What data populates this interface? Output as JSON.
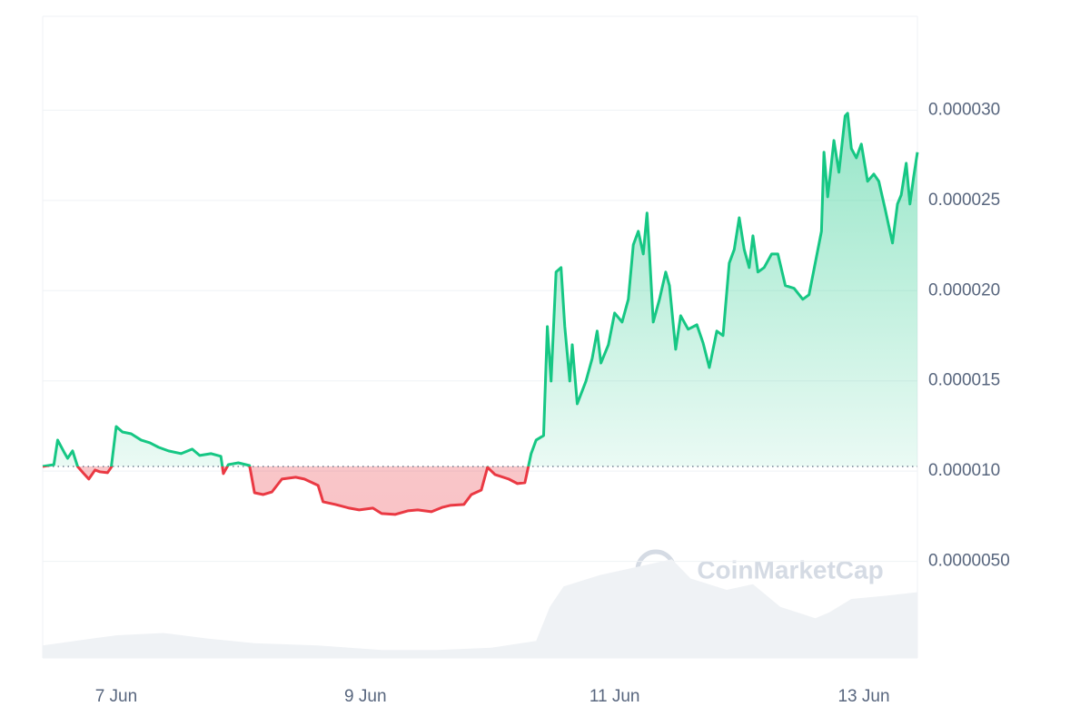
{
  "chart_data": {
    "type": "baseline-line",
    "watermark": "CoinMarketCap",
    "xlim": [
      6.41,
      13.43
    ],
    "xticks": [
      {
        "value": 7,
        "label": "7 Jun"
      },
      {
        "value": 9,
        "label": "9 Jun"
      },
      {
        "value": 11,
        "label": "11 Jun"
      },
      {
        "value": 13,
        "label": "13 Jun"
      }
    ],
    "ylim": [
      0,
      3.52e-05
    ],
    "yticks": [
      {
        "value": 5e-06,
        "label": "0.0000050"
      },
      {
        "value": 1e-05,
        "label": "0.000010"
      },
      {
        "value": 1.5e-05,
        "label": "0.000015"
      },
      {
        "value": 2e-05,
        "label": "0.000020"
      },
      {
        "value": 2.5e-05,
        "label": "0.000025"
      },
      {
        "value": 3e-05,
        "label": "0.000030"
      }
    ],
    "grid": true,
    "baseline": 1.026e-05,
    "up_color": "#16c784",
    "down_color": "#ea3943",
    "x": [
      6.41,
      6.5,
      6.53,
      6.58,
      6.61,
      6.65,
      6.69,
      6.74,
      6.78,
      6.83,
      6.87,
      6.93,
      6.96,
      7.0,
      7.05,
      7.12,
      7.2,
      7.27,
      7.34,
      7.42,
      7.52,
      7.61,
      7.67,
      7.76,
      7.84,
      7.86,
      7.9,
      7.98,
      8.07,
      8.11,
      8.18,
      8.25,
      8.33,
      8.44,
      8.51,
      8.62,
      8.66,
      8.76,
      8.87,
      8.95,
      9.06,
      9.13,
      9.24,
      9.34,
      9.42,
      9.53,
      9.62,
      9.68,
      9.79,
      9.85,
      9.93,
      9.98,
      10.04,
      10.15,
      10.22,
      10.28,
      10.33,
      10.37,
      10.43,
      10.46,
      10.49,
      10.53,
      10.57,
      10.6,
      10.64,
      10.66,
      10.7,
      10.77,
      10.82,
      10.86,
      10.89,
      10.95,
      11.0,
      11.06,
      11.11,
      11.15,
      11.19,
      11.23,
      11.26,
      11.28,
      11.31,
      11.36,
      11.41,
      11.44,
      11.49,
      11.53,
      11.59,
      11.66,
      11.71,
      11.76,
      11.82,
      11.87,
      11.92,
      11.96,
      12.0,
      12.04,
      12.08,
      12.11,
      12.15,
      12.2,
      12.26,
      12.31,
      12.37,
      12.44,
      12.51,
      12.56,
      12.61,
      12.66,
      12.68,
      12.71,
      12.76,
      12.8,
      12.85,
      12.87,
      12.9,
      12.94,
      12.98,
      13.03,
      13.08,
      13.12,
      13.17,
      13.23,
      13.27,
      13.3,
      13.34,
      13.37,
      13.4,
      13.43
    ],
    "values": [
      1.026e-05,
      1.036e-05,
      1.172e-05,
      1.107e-05,
      1.071e-05,
      1.112e-05,
      1.026e-05,
      9.86e-06,
      9.56e-06,
      1.006e-05,
      9.96e-06,
      9.91e-06,
      1.021e-05,
      1.247e-05,
      1.217e-05,
      1.207e-05,
      1.172e-05,
      1.157e-05,
      1.132e-05,
      1.112e-05,
      1.097e-05,
      1.122e-05,
      1.087e-05,
      1.097e-05,
      1.082e-05,
      9.86e-06,
      1.036e-05,
      1.046e-05,
      1.031e-05,
      8.8e-06,
      8.7e-06,
      8.85e-06,
      9.56e-06,
      9.66e-06,
      9.56e-06,
      9.21e-06,
      8.3e-06,
      8.15e-06,
      7.95e-06,
      7.85e-06,
      7.95e-06,
      7.65e-06,
      7.6e-06,
      7.8e-06,
      7.85e-06,
      7.75e-06,
      8e-06,
      8.1e-06,
      8.15e-06,
      8.7e-06,
      8.95e-06,
      1.021e-05,
      9.81e-06,
      9.56e-06,
      9.31e-06,
      9.36e-06,
      1.097e-05,
      1.172e-05,
      1.197e-05,
      1.801e-05,
      1.499e-05,
      2.103e-05,
      2.128e-05,
      1.801e-05,
      1.499e-05,
      1.7e-05,
      1.373e-05,
      1.499e-05,
      1.625e-05,
      1.776e-05,
      1.599e-05,
      1.7e-05,
      1.876e-05,
      1.826e-05,
      1.952e-05,
      2.254e-05,
      2.329e-05,
      2.203e-05,
      2.43e-05,
      2.203e-05,
      1.826e-05,
      1.952e-05,
      2.103e-05,
      2.028e-05,
      1.675e-05,
      1.861e-05,
      1.786e-05,
      1.811e-05,
      1.71e-05,
      1.574e-05,
      1.776e-05,
      1.751e-05,
      2.153e-05,
      2.228e-05,
      2.404e-05,
      2.228e-05,
      2.128e-05,
      2.304e-05,
      2.103e-05,
      2.128e-05,
      2.203e-05,
      2.203e-05,
      2.028e-05,
      2.013e-05,
      1.952e-05,
      1.977e-05,
      2.153e-05,
      2.329e-05,
      2.767e-05,
      2.52e-05,
      2.832e-05,
      2.656e-05,
      2.968e-05,
      2.983e-05,
      2.787e-05,
      2.736e-05,
      2.812e-05,
      2.606e-05,
      2.646e-05,
      2.606e-05,
      2.455e-05,
      2.264e-05,
      2.48e-05,
      2.53e-05,
      2.706e-05,
      2.48e-05,
      2.631e-05,
      2.767e-05
    ],
    "volume": {
      "color": "#eff2f5",
      "ylim": [
        0,
        100
      ],
      "x": [
        6.41,
        6.8,
        7.01,
        7.38,
        7.74,
        8.11,
        8.62,
        9.13,
        9.57,
        10.01,
        10.37,
        10.48,
        10.59,
        10.88,
        11.17,
        11.46,
        11.61,
        11.9,
        12.11,
        12.33,
        12.61,
        12.72,
        12.9,
        13.19,
        13.43
      ],
      "values": [
        11,
        17,
        20,
        22,
        17,
        13,
        11,
        7,
        7,
        9,
        15,
        45,
        63,
        73,
        80,
        87,
        70,
        60,
        65,
        45,
        35,
        40,
        52,
        55,
        58
      ]
    }
  }
}
